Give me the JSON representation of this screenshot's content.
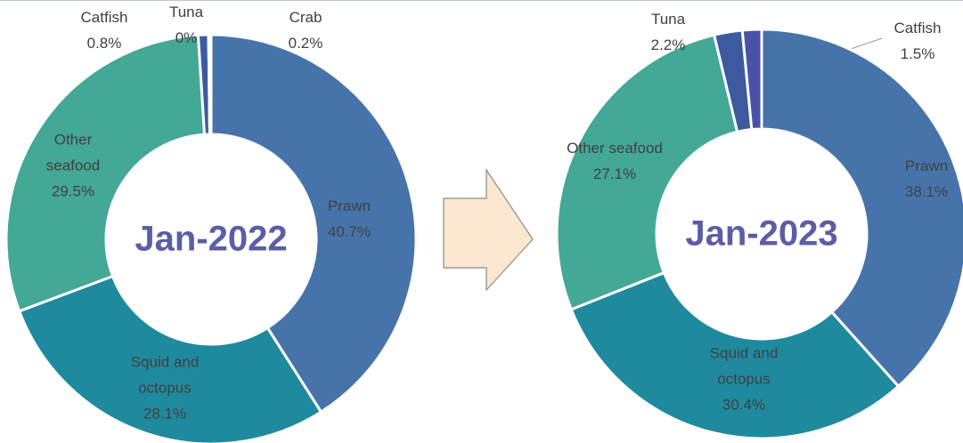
{
  "chart_data": [
    {
      "type": "donut",
      "title": "Jan-2022",
      "categories": [
        "Prawn",
        "Squid and octopus",
        "Other seafood",
        "Catfish",
        "Tuna",
        "Crab"
      ],
      "values": [
        40.7,
        28.1,
        29.5,
        0.8,
        0,
        0.2
      ],
      "value_labels": [
        "40.7%",
        "28.1%",
        "29.5%",
        "0.8%",
        "0%",
        "0.2%"
      ],
      "colors": [
        "#4674aa",
        "#1f8a9e",
        "#43a895",
        "#3d5aa0",
        "#4a52a8",
        "#3b4f8e"
      ]
    },
    {
      "type": "donut",
      "title": "Jan-2023",
      "categories": [
        "Prawn",
        "Squid and octopus",
        "Other seafood",
        "Tuna",
        "Catfish"
      ],
      "values": [
        38.1,
        30.4,
        27.1,
        2.2,
        1.5
      ],
      "value_labels": [
        "38.1%",
        "30.4%",
        "27.1%",
        "2.2%",
        "1.5%"
      ],
      "colors": [
        "#4674aa",
        "#1f8a9e",
        "#43a895",
        "#3d5aa0",
        "#4a52a8"
      ]
    }
  ]
}
